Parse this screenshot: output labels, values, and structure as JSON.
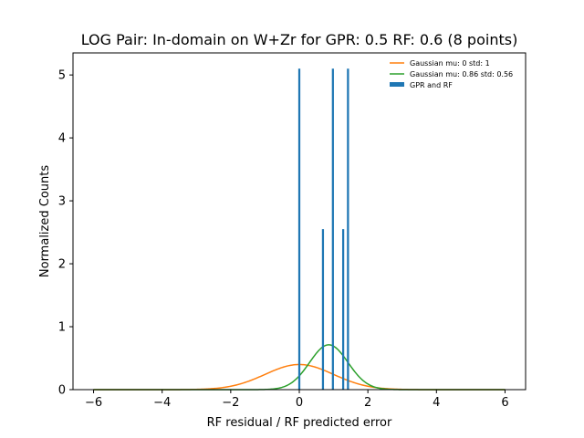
{
  "chart_data": {
    "type": "bar",
    "title": "LOG Pair: In-domain on W+Zr for GPR: 0.5 RF: 0.6 (8 points)",
    "xlabel": "RF residual / RF predicted error",
    "ylabel": "Normalized Counts",
    "xlim": [
      -6.6,
      6.6
    ],
    "ylim": [
      0,
      5.35
    ],
    "xticks": [
      -6,
      -4,
      -2,
      0,
      2,
      4,
      6
    ],
    "xtick_labels": [
      "−6",
      "−4",
      "−2",
      "0",
      "2",
      "4",
      "6"
    ],
    "yticks": [
      0,
      1,
      2,
      3,
      4,
      5
    ],
    "ytick_labels": [
      "0",
      "1",
      "2",
      "3",
      "4",
      "5"
    ],
    "grid": false,
    "legend_placement": "top-right",
    "bars": {
      "name": "GPR and RF",
      "color": "#1f77b4",
      "x": [
        0.0,
        0.69,
        0.98,
        1.28,
        1.42
      ],
      "values": [
        5.1,
        2.55,
        5.1,
        2.55,
        5.1
      ],
      "bar_width": 0.06
    },
    "curves": [
      {
        "name": "Gaussian mu: 0 std: 1",
        "color": "#ff7f0e",
        "mu": 0,
        "std": 1,
        "x_range": [
          -6,
          6
        ]
      },
      {
        "name": "Gaussian mu: 0.86 std: 0.56",
        "color": "#2ca02c",
        "mu": 0.86,
        "std": 0.56,
        "x_range": [
          -6,
          6
        ]
      }
    ]
  }
}
